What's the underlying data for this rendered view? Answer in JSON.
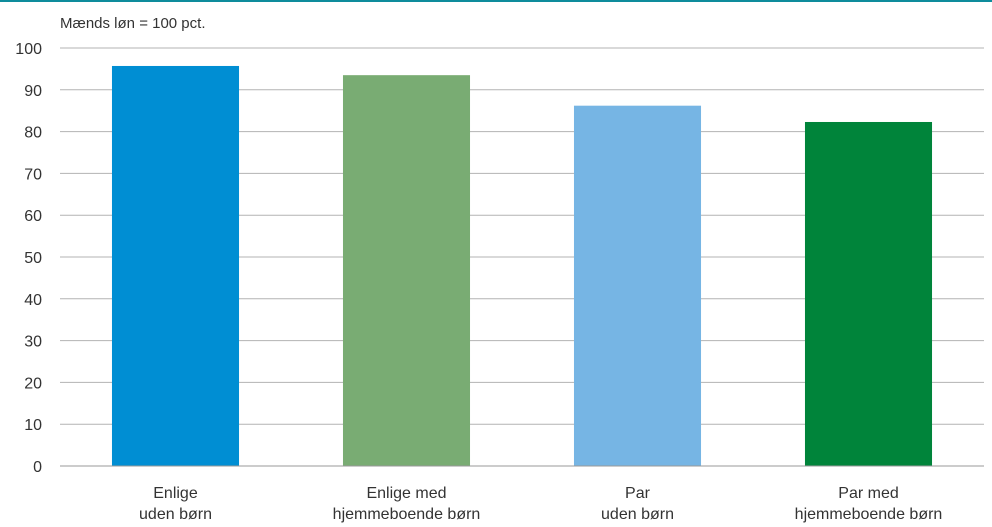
{
  "chart_data": {
    "type": "bar",
    "ylabel": "Mænds løn = 100 pct.",
    "ylim": [
      0,
      100
    ],
    "yticks": [
      0,
      10,
      20,
      30,
      40,
      50,
      60,
      70,
      80,
      90,
      100
    ],
    "grid": true,
    "categories": [
      [
        "Enlige",
        "uden børn"
      ],
      [
        "Enlige med",
        "hjemmeboende børn"
      ],
      [
        "Par",
        "uden børn"
      ],
      [
        "Par med",
        "hjemmeboende børn"
      ]
    ],
    "values": [
      95.7,
      93.5,
      86.2,
      82.3
    ],
    "colors": [
      "#008ED3",
      "#79AC73",
      "#76B5E4",
      "#00843A"
    ]
  }
}
